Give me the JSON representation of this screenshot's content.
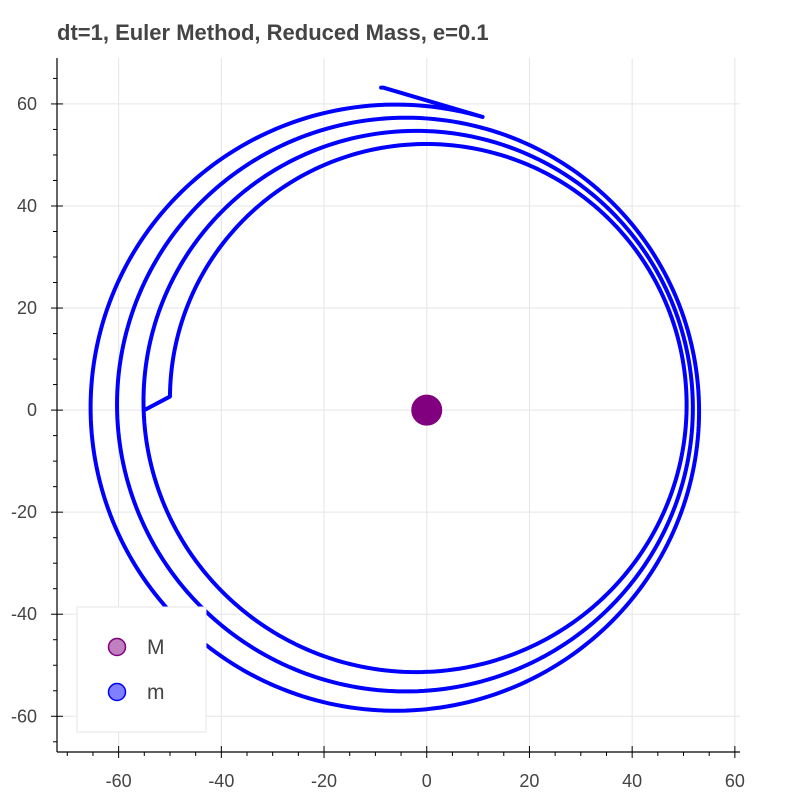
{
  "chart_data": {
    "type": "scatter",
    "title": "dt=1, Euler Method, Reduced Mass, e=0.1",
    "xlabel": "",
    "ylabel": "",
    "xlim": [
      -72,
      61
    ],
    "ylim": [
      -67,
      69
    ],
    "x_ticks": [
      -60,
      -40,
      -20,
      0,
      20,
      40,
      60
    ],
    "y_ticks": [
      -60,
      -40,
      -20,
      0,
      20,
      40,
      60
    ],
    "grid": true,
    "legend": {
      "position": "bottom-left"
    },
    "series": [
      {
        "name": "M",
        "kind": "point",
        "color": "#800080",
        "legend_fill": "#c080c0",
        "points": [
          [
            0,
            0
          ]
        ]
      },
      {
        "name": "m",
        "kind": "line",
        "color": "#0000ff",
        "legend_fill": "#8080ff",
        "start": [
          -55,
          0
        ],
        "end": [
          -8.5,
          63.2
        ],
        "orbit_turns": 3.3,
        "radius_start": 50,
        "radius_end": 60.5,
        "center_x_start": 0,
        "center_x_end": -6.5,
        "center_y_start": 1.5,
        "center_y_end": -0.5
      }
    ]
  }
}
